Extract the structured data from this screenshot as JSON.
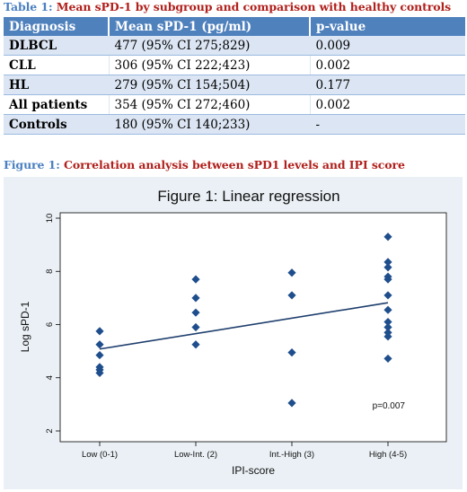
{
  "table": {
    "caption_label": "Table 1:",
    "caption_text": "Mean sPD-1 by subgroup and comparison with healthy controls",
    "headers": [
      "Diagnosis",
      "Mean sPD-1 (pg/ml)",
      "p-value"
    ],
    "rows": [
      [
        "DLBCL",
        "477 (95% CI 275;829)",
        "0.009"
      ],
      [
        "CLL",
        "306 (95% CI 222;423)",
        "0.002"
      ],
      [
        "HL",
        "279 (95% CI 154;504)",
        "0.177"
      ],
      [
        "All patients",
        "354 (95% CI 272;460)",
        "0.002"
      ],
      [
        "Controls",
        "180 (95% CI 140;233)",
        "-"
      ]
    ]
  },
  "figure": {
    "caption_label": "Figure 1:",
    "caption_text": "Correlation analysis between sPD1 levels and IPI score"
  },
  "colors": {
    "caption_label": "#4a7fc1",
    "caption_text": "#b0201c",
    "table_header": "#4f81bd",
    "table_band": "#dbe5f3",
    "plot_outer": "#eaf0f5",
    "marker": "#1f4e8c",
    "line": "#1f3f6e"
  },
  "chart_data": {
    "type": "scatter",
    "title": "Figure 1: Linear regression",
    "xlabel": "IPI-score",
    "ylabel": "Log sPD-1",
    "categories": [
      "Low (0-1)",
      "Low-Int. (2)",
      "Int.-High (3)",
      "High (4-5)"
    ],
    "ylim": [
      2,
      10
    ],
    "yticks": [
      2,
      4,
      6,
      8,
      10
    ],
    "grid": false,
    "legend": "none",
    "points": [
      {
        "x": "Low (0-1)",
        "y": 5.75
      },
      {
        "x": "Low (0-1)",
        "y": 5.25
      },
      {
        "x": "Low (0-1)",
        "y": 4.85
      },
      {
        "x": "Low (0-1)",
        "y": 4.4
      },
      {
        "x": "Low (0-1)",
        "y": 4.3
      },
      {
        "x": "Low (0-1)",
        "y": 4.18
      },
      {
        "x": "Low-Int. (2)",
        "y": 7.7
      },
      {
        "x": "Low-Int. (2)",
        "y": 7.0
      },
      {
        "x": "Low-Int. (2)",
        "y": 6.45
      },
      {
        "x": "Low-Int. (2)",
        "y": 5.9
      },
      {
        "x": "Low-Int. (2)",
        "y": 5.25
      },
      {
        "x": "Int.-High (3)",
        "y": 7.95
      },
      {
        "x": "Int.-High (3)",
        "y": 7.1
      },
      {
        "x": "Int.-High (3)",
        "y": 4.95
      },
      {
        "x": "Int.-High (3)",
        "y": 3.05
      },
      {
        "x": "High (4-5)",
        "y": 9.3
      },
      {
        "x": "High (4-5)",
        "y": 8.35
      },
      {
        "x": "High (4-5)",
        "y": 8.15
      },
      {
        "x": "High (4-5)",
        "y": 7.8
      },
      {
        "x": "High (4-5)",
        "y": 7.7
      },
      {
        "x": "High (4-5)",
        "y": 7.1
      },
      {
        "x": "High (4-5)",
        "y": 6.55
      },
      {
        "x": "High (4-5)",
        "y": 6.1
      },
      {
        "x": "High (4-5)",
        "y": 5.9
      },
      {
        "x": "High (4-5)",
        "y": 5.7
      },
      {
        "x": "High (4-5)",
        "y": 5.55
      },
      {
        "x": "High (4-5)",
        "y": 4.72
      }
    ],
    "regression_line": {
      "from": {
        "x": "Low (0-1)",
        "y": 5.08
      },
      "to": {
        "x": "High (4-5)",
        "y": 6.82
      }
    },
    "annotation": "p=0.007"
  }
}
